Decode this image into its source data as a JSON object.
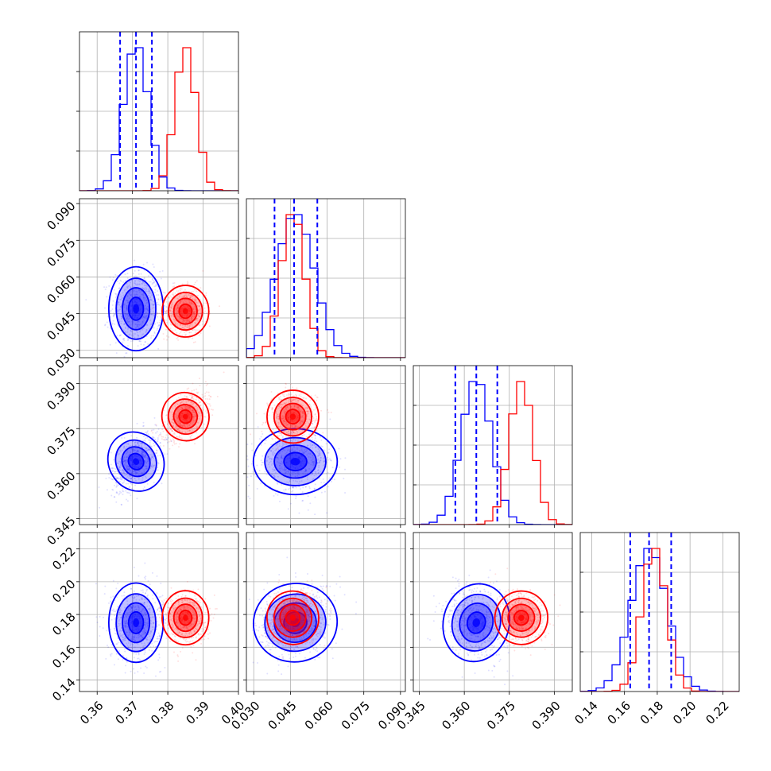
{
  "chart_data": {
    "type": "corner",
    "grid": true,
    "colors": {
      "blue": "#0000ff",
      "red": "#ff0000",
      "grid": "#b0b0b0"
    },
    "series": [
      {
        "color": "#0000ff",
        "means": [
          0.371,
          0.047,
          0.364,
          0.175
        ],
        "stds": [
          0.0035,
          0.0078,
          0.005,
          0.011
        ],
        "quantiles": [
          [
            0.3665,
            0.371,
            0.3755
          ],
          [
            0.0385,
            0.0465,
            0.056
          ],
          [
            0.357,
            0.364,
            0.371
          ],
          [
            0.1635,
            0.175,
            0.1885
          ]
        ]
      },
      {
        "color": "#ff0000",
        "means": [
          0.385,
          0.046,
          0.379,
          0.178
        ],
        "stds": [
          0.003,
          0.0048,
          0.004,
          0.0075
        ],
        "quantiles": null
      }
    ],
    "axes": [
      {
        "range": [
          0.355,
          0.4
        ],
        "ticks": [
          0.36,
          0.37,
          0.38,
          0.39,
          0.4
        ],
        "tick_labels": [
          "0.36",
          "0.37",
          "0.38",
          "0.39",
          "0.40"
        ]
      },
      {
        "range": [
          0.027,
          0.092
        ],
        "ticks": [
          0.03,
          0.045,
          0.06,
          0.075,
          0.09
        ],
        "tick_labels": [
          "0.030",
          "0.045",
          "0.060",
          "0.075",
          "0.090"
        ]
      },
      {
        "range": [
          0.343,
          0.396
        ],
        "ticks": [
          0.345,
          0.36,
          0.375,
          0.39
        ],
        "tick_labels": [
          "0.345",
          "0.360",
          "0.375",
          "0.390"
        ]
      },
      {
        "range": [
          0.133,
          0.23
        ],
        "ticks": [
          0.14,
          0.16,
          0.18,
          0.2,
          0.22
        ],
        "tick_labels": [
          "0.14",
          "0.16",
          "0.18",
          "0.20",
          "0.22"
        ]
      }
    ],
    "hist_ylims": [
      0.055,
      0.04,
      0.05,
      0.06
    ]
  }
}
